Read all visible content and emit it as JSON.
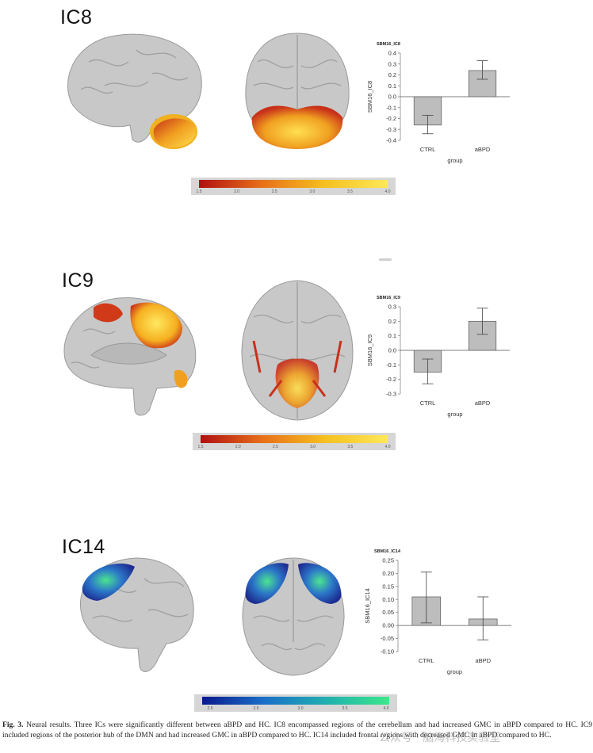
{
  "panels": [
    {
      "label": "IC8",
      "chart_title": "SBM16_IC8",
      "colorbar_ticks": [
        "1.5",
        "2.0",
        "2.5",
        "3.0",
        "3.5",
        "4.0"
      ],
      "colorbar_colors": [
        "#b01010",
        "#e8701a",
        "#f5c020",
        "#ffe85a"
      ]
    },
    {
      "label": "IC9",
      "chart_title": "SBM16_IC9",
      "colorbar_ticks": [
        "1.5",
        "2.0",
        "2.5",
        "3.0",
        "3.5",
        "4.0"
      ],
      "colorbar_colors": [
        "#b01010",
        "#e8701a",
        "#f5c020",
        "#ffe85a"
      ]
    },
    {
      "label": "IC14",
      "chart_title": "SBM16_IC14",
      "colorbar_ticks": [
        "2.5",
        "2.5",
        "3.0",
        "3.5",
        "4.0"
      ],
      "colorbar_colors": [
        "#0a1a8c",
        "#1a6fc8",
        "#20b0b0",
        "#3de88a"
      ]
    }
  ],
  "chart_data": [
    {
      "type": "bar",
      "title": "SBM16_IC8",
      "xlabel": "group",
      "ylabel": "SBM16_IC8",
      "categories": [
        "CTRL",
        "aBPD"
      ],
      "values": [
        -0.26,
        0.24
      ],
      "error_low": [
        -0.34,
        0.16
      ],
      "error_high": [
        -0.17,
        0.33
      ],
      "ylim": [
        -0.4,
        0.4
      ],
      "yticks": [
        "-0.4",
        "-0.3",
        "-0.2",
        "-0.1",
        "0.0",
        "0.1",
        "0.2",
        "0.3",
        "0.4"
      ],
      "ytick_values": [
        -0.4,
        -0.3,
        -0.2,
        -0.1,
        0.0,
        0.1,
        0.2,
        0.3,
        0.4
      ],
      "bar_color": "#bdbdbd"
    },
    {
      "type": "bar",
      "title": "SBM16_IC9",
      "xlabel": "group",
      "ylabel": "SBM16_IC9",
      "categories": [
        "CTRL",
        "aBPD"
      ],
      "values": [
        -0.15,
        0.2
      ],
      "error_low": [
        -0.23,
        0.11
      ],
      "error_high": [
        -0.06,
        0.29
      ],
      "ylim": [
        -0.3,
        0.3
      ],
      "yticks": [
        "-0.3",
        "-0.2",
        "-0.1",
        "0.0",
        "0.1",
        "0.2",
        "0.3"
      ],
      "ytick_values": [
        -0.3,
        -0.2,
        -0.1,
        0.0,
        0.1,
        0.2,
        0.3
      ],
      "bar_color": "#bdbdbd"
    },
    {
      "type": "bar",
      "title": "SBM16_IC14",
      "xlabel": "group",
      "ylabel": "SBM16_IC14",
      "categories": [
        "CTRL",
        "aBPD"
      ],
      "values": [
        0.11,
        0.025
      ],
      "error_low": [
        0.01,
        -0.055
      ],
      "error_high": [
        0.205,
        0.11
      ],
      "ylim": [
        -0.1,
        0.25
      ],
      "yticks": [
        "-0.10",
        "-0.05",
        "0.00",
        "0.05",
        "0.10",
        "0.15",
        "0.20",
        "0.25"
      ],
      "ytick_values": [
        -0.1,
        -0.05,
        0.0,
        0.05,
        0.1,
        0.15,
        0.2,
        0.25
      ],
      "bar_color": "#bdbdbd"
    }
  ],
  "caption": {
    "fig_label": "Fig. 3.",
    "text": "Neural results. Three ICs were significantly different between aBPD and HC. IC8 encompassed regions of the cerebellum and had increased GMC in aBPD compared to HC. IC9 included regions of the posterior hub of the DMN and had increased GMC in aBPD compared to HC. IC14 included frontal regions with decreased GMC in aBPD compared to HC."
  },
  "watermark": "公众号 · 脑海科技实验室"
}
